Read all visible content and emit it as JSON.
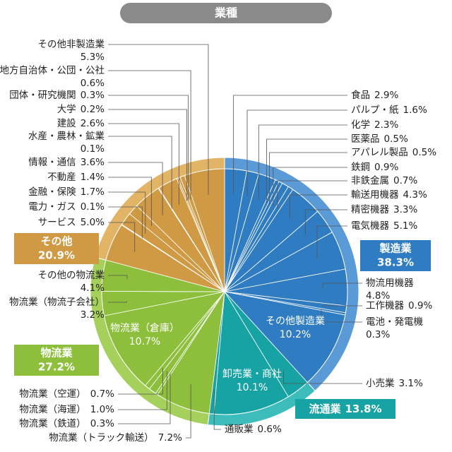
{
  "chart_data": {
    "type": "pie",
    "title": "業種",
    "groups": [
      {
        "name": "製造業",
        "value": 38.3,
        "value_label": "38.3%",
        "color": "#2f7cc2",
        "ring": "#5a9ad6",
        "categories": [
          "食品",
          "パルプ・紙",
          "化学",
          "医薬品",
          "アパレル製品",
          "鉄鋼",
          "非鉄金属",
          "輸送用機器",
          "精密機器",
          "電気機器",
          "物流用機器",
          "工作機器",
          "電池・発電機",
          "その他製造業"
        ],
        "values": [
          2.9,
          1.6,
          2.3,
          0.5,
          0.5,
          0.9,
          0.7,
          4.3,
          3.3,
          5.1,
          4.8,
          0.9,
          0.3,
          10.2
        ],
        "value_labels": [
          "2.9%",
          "1.6%",
          "2.3%",
          "0.5%",
          "0.5%",
          "0.9%",
          "0.7%",
          "4.3%",
          "3.3%",
          "5.1%",
          "4.8%",
          "0.9%",
          "0.3%",
          "10.2%"
        ]
      },
      {
        "name": "流通業",
        "value": 13.8,
        "value_label": "13.8%",
        "color": "#17a3a3",
        "ring": "#3dbcbc",
        "categories": [
          "小売業",
          "卸売業・商社",
          "通販業"
        ],
        "values": [
          3.1,
          10.1,
          0.6
        ],
        "value_labels": [
          "3.1%",
          "10.1%",
          "0.6%"
        ]
      },
      {
        "name": "物流業",
        "value": 27.2,
        "value_label": "27.2%",
        "color": "#8dbf3c",
        "ring": "#a6d05c",
        "categories": [
          "物流業（トラック輸送）",
          "物流業（鉄道）",
          "物流業（海運）",
          "物流業（空運）",
          "物流業（倉庫）",
          "物流業（物流子会社）",
          "その他の物流業"
        ],
        "values": [
          7.2,
          0.3,
          1.0,
          0.7,
          10.7,
          3.2,
          4.1
        ],
        "value_labels": [
          "7.2%",
          "0.3%",
          "1.0%",
          "0.7%",
          "10.7%",
          "3.2%",
          "4.1%"
        ]
      },
      {
        "name": "その他",
        "value": 20.9,
        "value_label": "20.9%",
        "color": "#d09a45",
        "ring": "#e2b465",
        "categories": [
          "サービス",
          "電力・ガス",
          "金融・保険",
          "不動産",
          "情報・通信",
          "水産・農林・鉱業",
          "建設",
          "大学",
          "団体・研究機関",
          "官庁・地方自治体・公団・公社",
          "その他非製造業"
        ],
        "values": [
          5.0,
          0.1,
          1.7,
          1.4,
          3.6,
          0.1,
          2.6,
          0.2,
          0.3,
          0.6,
          5.3
        ],
        "value_labels": [
          "5.0%",
          "0.1%",
          "1.7%",
          "1.4%",
          "3.6%",
          "0.1%",
          "2.6%",
          "0.2%",
          "0.3%",
          "0.6%",
          "5.3%"
        ]
      }
    ]
  }
}
